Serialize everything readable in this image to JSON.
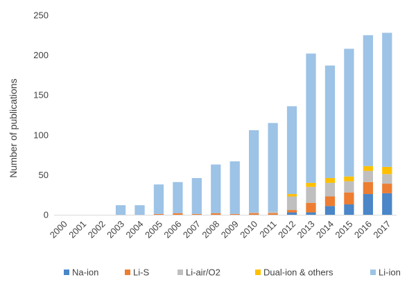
{
  "chart_data": {
    "type": "bar",
    "stacked": true,
    "categories": [
      "2000",
      "2001",
      "2002",
      "2003",
      "2004",
      "2005",
      "2006",
      "2007",
      "2008",
      "2009",
      "2010",
      "2011",
      "2012",
      "2013",
      "2014",
      "2015",
      "2016",
      "2017"
    ],
    "series": [
      {
        "name": "Na-ion",
        "color": "#4a86c8",
        "values": [
          0,
          0,
          0,
          0,
          0,
          0,
          0,
          0,
          0,
          0,
          0,
          0,
          3,
          3,
          11,
          13,
          26,
          27
        ]
      },
      {
        "name": "Li-S",
        "color": "#ed7d31",
        "values": [
          0,
          0,
          0,
          0,
          0,
          1,
          2,
          1,
          2,
          1,
          2,
          2,
          3,
          12,
          12,
          15,
          15,
          12
        ]
      },
      {
        "name": "Li-air/O2",
        "color": "#bfbfbf",
        "values": [
          0,
          0,
          0,
          0,
          0,
          0,
          0,
          0,
          0,
          0,
          1,
          2,
          17,
          20,
          17,
          14,
          14,
          12
        ]
      },
      {
        "name": "Dual-ion & others",
        "color": "#ffc000",
        "values": [
          0,
          0,
          0,
          0,
          0,
          0,
          0,
          0,
          0,
          0,
          0,
          0,
          3,
          5,
          6,
          6,
          6,
          9
        ]
      },
      {
        "name": "Li-ion",
        "color": "#9dc3e6",
        "values": [
          0,
          0,
          0,
          12,
          12,
          37,
          39,
          45,
          61,
          66,
          103,
          111,
          110,
          162,
          141,
          160,
          164,
          168
        ]
      }
    ],
    "xlabel": "",
    "ylabel": "Number of publications",
    "ylim": [
      0,
      250
    ],
    "yticks": [
      "0",
      "50",
      "100",
      "150",
      "200",
      "250"
    ],
    "grid": false,
    "legend_position": "bottom"
  }
}
